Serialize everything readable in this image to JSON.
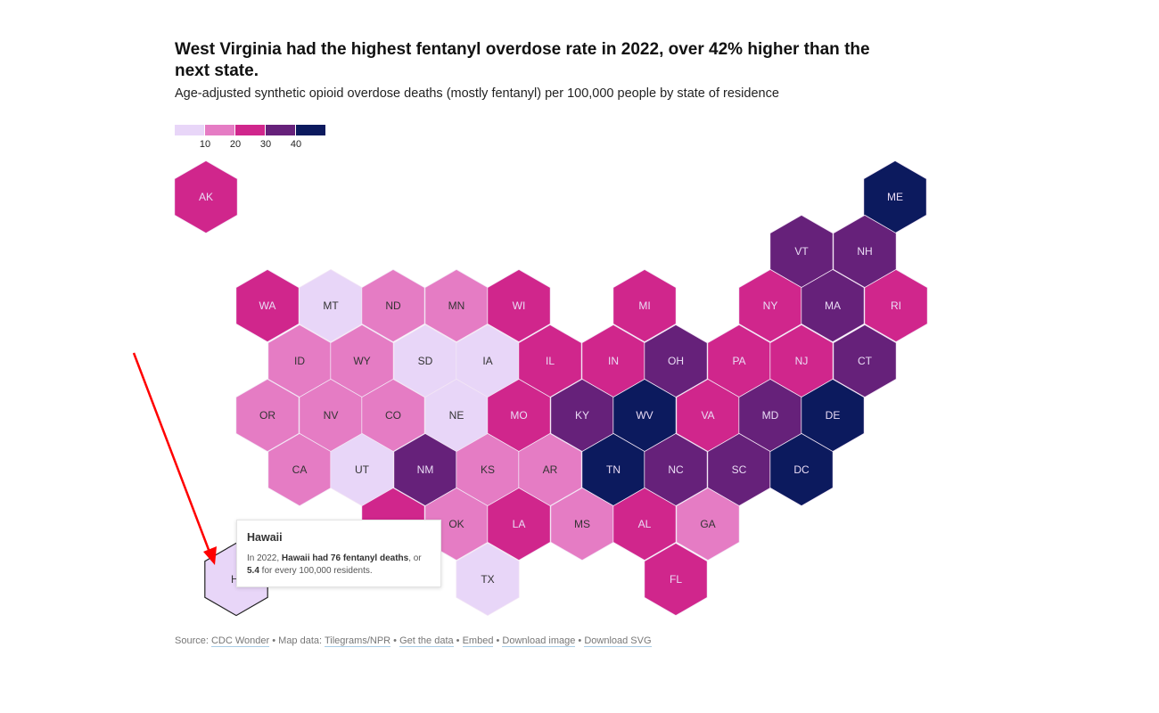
{
  "title": "West Virginia had the highest fentanyl overdose rate in 2022, over 42% higher than the next state.",
  "subtitle": "Age-adjusted synthetic opioid overdose deaths (mostly fentanyl) per 100,000 people by state of residence",
  "legend": {
    "colors": [
      "#e8d6f8",
      "#e57cc4",
      "#d0268c",
      "#66217a",
      "#0c1a5e"
    ],
    "ticks": [
      "10",
      "20",
      "30",
      "40"
    ]
  },
  "states": [
    {
      "abbr": "AK",
      "bin": 2
    },
    {
      "abbr": "ME",
      "bin": 4
    },
    {
      "abbr": "VT",
      "bin": 3
    },
    {
      "abbr": "NH",
      "bin": 3
    },
    {
      "abbr": "WA",
      "bin": 2
    },
    {
      "abbr": "MT",
      "bin": 0
    },
    {
      "abbr": "ND",
      "bin": 1
    },
    {
      "abbr": "MN",
      "bin": 1
    },
    {
      "abbr": "WI",
      "bin": 2
    },
    {
      "abbr": "MI",
      "bin": 2
    },
    {
      "abbr": "NY",
      "bin": 2
    },
    {
      "abbr": "MA",
      "bin": 3
    },
    {
      "abbr": "RI",
      "bin": 2
    },
    {
      "abbr": "ID",
      "bin": 1
    },
    {
      "abbr": "WY",
      "bin": 1
    },
    {
      "abbr": "SD",
      "bin": 0
    },
    {
      "abbr": "IA",
      "bin": 0
    },
    {
      "abbr": "IL",
      "bin": 2
    },
    {
      "abbr": "IN",
      "bin": 2
    },
    {
      "abbr": "OH",
      "bin": 3
    },
    {
      "abbr": "PA",
      "bin": 2
    },
    {
      "abbr": "NJ",
      "bin": 2
    },
    {
      "abbr": "CT",
      "bin": 3
    },
    {
      "abbr": "OR",
      "bin": 1
    },
    {
      "abbr": "NV",
      "bin": 1
    },
    {
      "abbr": "CO",
      "bin": 1
    },
    {
      "abbr": "NE",
      "bin": 0
    },
    {
      "abbr": "MO",
      "bin": 2
    },
    {
      "abbr": "KY",
      "bin": 3
    },
    {
      "abbr": "WV",
      "bin": 4
    },
    {
      "abbr": "VA",
      "bin": 2
    },
    {
      "abbr": "MD",
      "bin": 3
    },
    {
      "abbr": "DE",
      "bin": 4
    },
    {
      "abbr": "CA",
      "bin": 1
    },
    {
      "abbr": "UT",
      "bin": 0
    },
    {
      "abbr": "NM",
      "bin": 3
    },
    {
      "abbr": "KS",
      "bin": 1
    },
    {
      "abbr": "AR",
      "bin": 1
    },
    {
      "abbr": "TN",
      "bin": 4
    },
    {
      "abbr": "NC",
      "bin": 3
    },
    {
      "abbr": "SC",
      "bin": 3
    },
    {
      "abbr": "DC",
      "bin": 4
    },
    {
      "abbr": "",
      "bin": 2
    },
    {
      "abbr": "OK",
      "bin": 1
    },
    {
      "abbr": "LA",
      "bin": 2
    },
    {
      "abbr": "MS",
      "bin": 1
    },
    {
      "abbr": "AL",
      "bin": 2
    },
    {
      "abbr": "GA",
      "bin": 1
    },
    {
      "abbr": "HI",
      "bin": 0,
      "hovered": true
    },
    {
      "abbr": "TX",
      "bin": 0
    },
    {
      "abbr": "FL",
      "bin": 2
    }
  ],
  "tooltip": {
    "title": "Hawaii",
    "prefix": "In 2022, ",
    "bold1": "Hawaii had 76 fentanyl deaths",
    "mid": ", or ",
    "bold2": "5.4",
    "suffix": " for every 100,000 residents."
  },
  "footer": {
    "source_label": "Source: ",
    "source_link": "CDC Wonder",
    "sep": " • ",
    "mapdata_label": "Map data: ",
    "mapdata_link": "Tilegrams/NPR",
    "get_data": "Get the data",
    "embed": "Embed",
    "download_image": "Download image",
    "download_svg": "Download SVG"
  },
  "annotation_color": "#ff0000"
}
